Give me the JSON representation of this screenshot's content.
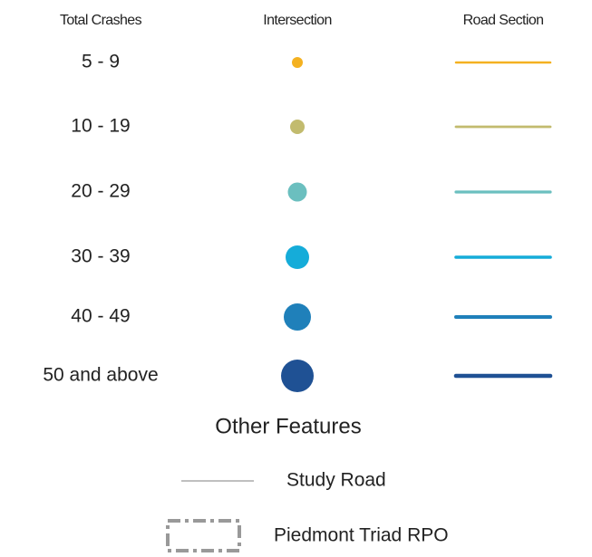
{
  "legend": {
    "headers": [
      "Total Crashes",
      "Intersection",
      "Road Section"
    ],
    "classes": [
      {
        "label": "5 - 9",
        "color": "#f4b120"
      },
      {
        "label": "10 - 19",
        "color": "#c2bb6e"
      },
      {
        "label": "20 - 29",
        "color": "#6bbfbf"
      },
      {
        "label": "30 - 39",
        "color": "#15acd9"
      },
      {
        "label": "40 - 49",
        "color": "#1f80ba"
      },
      {
        "label": "50 and above",
        "color": "#1f5194"
      }
    ],
    "other_features": {
      "title": "Other Features",
      "items": [
        {
          "label": "Study Road"
        },
        {
          "label": "Piedmont Triad RPO"
        }
      ]
    }
  }
}
